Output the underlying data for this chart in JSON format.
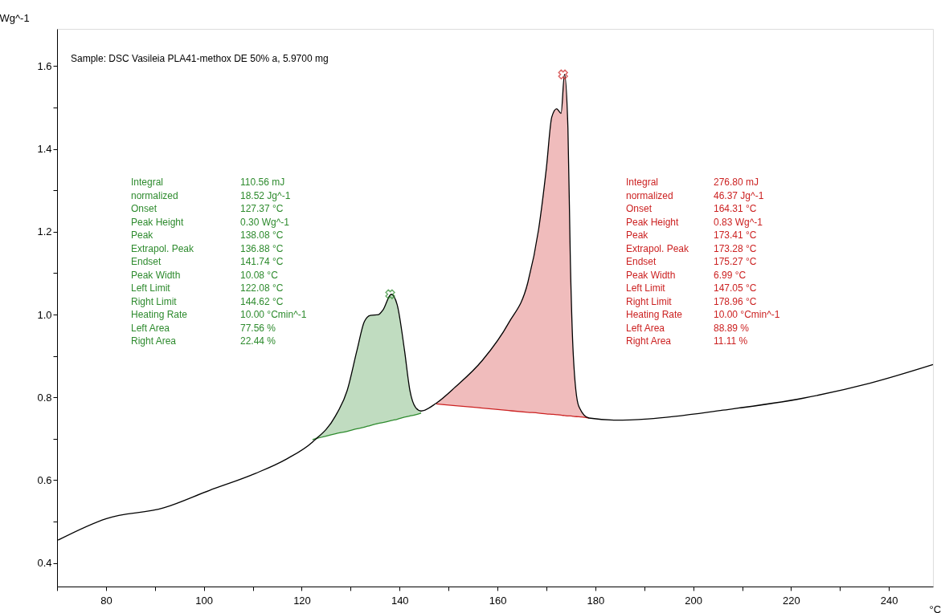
{
  "chart_data": {
    "type": "line",
    "xlabel": "°C",
    "ylabel": "Wg^-1",
    "xlim": [
      70,
      249
    ],
    "ylim": [
      0.343,
      1.69
    ],
    "xticks": [
      {
        "value": 70,
        "label": null
      },
      80,
      {
        "value": 90,
        "label": null
      },
      100,
      {
        "value": 110,
        "label": null
      },
      120,
      {
        "value": 130,
        "label": null
      },
      140,
      {
        "value": 150,
        "label": null
      },
      160,
      {
        "value": 170,
        "label": null
      },
      180,
      {
        "value": 190,
        "label": null
      },
      200,
      {
        "value": 210,
        "label": null
      },
      220,
      {
        "value": 230,
        "label": null
      },
      240
    ],
    "yticks": [
      0.4,
      {
        "value": 0.5,
        "label": null
      },
      0.6,
      {
        "value": 0.7,
        "label": null
      },
      0.8,
      {
        "value": 0.9,
        "label": null
      },
      {
        "value": 1.0,
        "label": "1.0"
      },
      {
        "value": 1.1,
        "label": null
      },
      1.2,
      {
        "value": 1.3,
        "label": null
      },
      1.4,
      {
        "value": 1.5,
        "label": null
      },
      1.6
    ],
    "grid": false,
    "line_style": "solid",
    "series": [
      {
        "color": "#000000",
        "x": [
          70.2,
          80.1,
          91.8,
          101.1,
          110.5,
          116.9,
          122.2,
          126.9,
          129.3,
          131.3,
          132.8,
          134,
          135.7,
          136.6,
          138.3,
          139.5,
          141,
          142.1,
          143.3,
          144.4,
          147.5,
          151.4,
          156.9,
          162.3,
          166.2,
          168.4,
          170,
          171.1,
          172.1,
          173,
          173.7,
          174.4,
          174.9,
          175.5,
          176.6,
          178.7,
          184.2,
          190.8,
          206.1,
          222.5,
          236.1,
          249
        ],
        "values": [
          0.455,
          0.507,
          0.533,
          0.575,
          0.616,
          0.651,
          0.692,
          0.755,
          0.817,
          0.914,
          0.983,
          0.998,
          1.0,
          1.011,
          1.049,
          1.024,
          0.914,
          0.817,
          0.775,
          0.767,
          0.786,
          0.825,
          0.889,
          0.98,
          1.077,
          1.205,
          1.354,
          1.477,
          1.497,
          1.486,
          1.58,
          1.451,
          1.128,
          0.902,
          0.779,
          0.75,
          0.745,
          0.748,
          0.769,
          0.798,
          0.834,
          0.879
        ]
      },
      {
        "color": "#2e8b2e",
        "x": [
          122.2,
          126.9,
          129.3,
          131.3,
          132.8,
          134,
          135.7,
          136.6,
          138.3,
          139.5,
          141,
          142.1,
          143.3,
          144.4
        ],
        "values": [
          0.698,
          0.712,
          0.718,
          0.724,
          0.728,
          0.732,
          0.737,
          0.739,
          0.744,
          0.747,
          0.752,
          0.755,
          0.758,
          0.762
        ],
        "upper": [
          0.698,
          0.755,
          0.817,
          0.914,
          0.983,
          0.998,
          1.0,
          1.011,
          1.049,
          1.024,
          0.914,
          0.817,
          0.775,
          0.767
        ],
        "lower": [
          0.698,
          0.712,
          0.718,
          0.724,
          0.728,
          0.732,
          0.737,
          0.739,
          0.744,
          0.747,
          0.752,
          0.755,
          0.758,
          0.762
        ]
      },
      {
        "color": "#cc2222",
        "x": [
          147.5,
          151.4,
          156.9,
          162.3,
          166.2,
          168.4,
          170,
          171.1,
          172.1,
          173,
          173.7,
          174.4,
          174.9,
          175.5,
          176.6,
          178.7
        ],
        "values": [
          0.784,
          0.78,
          0.774,
          0.768,
          0.764,
          0.762,
          0.76,
          0.759,
          0.758,
          0.757,
          0.756,
          0.755,
          0.755,
          0.754,
          0.753,
          0.75
        ],
        "upper": [
          0.786,
          0.825,
          0.889,
          0.98,
          1.077,
          1.205,
          1.354,
          1.477,
          1.497,
          1.486,
          1.58,
          1.451,
          1.128,
          0.902,
          0.779,
          0.75
        ],
        "lower": [
          0.784,
          0.78,
          0.774,
          0.768,
          0.764,
          0.762,
          0.76,
          0.759,
          0.758,
          0.757,
          0.756,
          0.755,
          0.755,
          0.754,
          0.753,
          0.75
        ]
      },
      {
        "type": "scatter",
        "marker": "cross",
        "color": "#2e8b2e",
        "x": [
          138.08
        ],
        "values": [
          1.049
        ]
      },
      {
        "type": "scatter",
        "marker": "cross",
        "color": "#cc2222",
        "x": [
          173.41
        ],
        "values": [
          1.58
        ]
      }
    ],
    "annotations": [
      "Sample: DSC Vasileia PLA41-methox DE 50% a, 5.9700 mg",
      "Integral\t110.56 mJ",
      "  normalized\t18.52 Jg^-1",
      "Onset\t127.37 °C",
      "Peak Height\t0.30 Wg^-1",
      "Peak\t138.08 °C",
      "Extrapol. Peak\t136.88 °C",
      "Endset\t141.74 °C",
      "Peak Width\t10.08 °C",
      "Left Limit\t122.08 °C",
      "Right Limit\t144.62 °C",
      "Heating Rate\t10.00 °Cmin^-1",
      "Left Area\t77.56 %",
      "Right Area\t22.44 %",
      "Integral\t276.80 mJ",
      "  normalized\t46.37 Jg^-1",
      "Onset\t164.31 °C",
      "Peak Height\t0.83 Wg^-1",
      "Peak\t173.41 °C",
      "Extrapol. Peak\t173.28 °C",
      "Endset\t175.27 °C",
      "Peak Width\t6.99 °C",
      "Left Limit\t147.05 °C",
      "Right Limit\t178.96 °C",
      "Heating Rate\t10.00 °Cmin^-1",
      "Left Area\t88.89 %",
      "Right Area\t11.11 %"
    ]
  }
}
